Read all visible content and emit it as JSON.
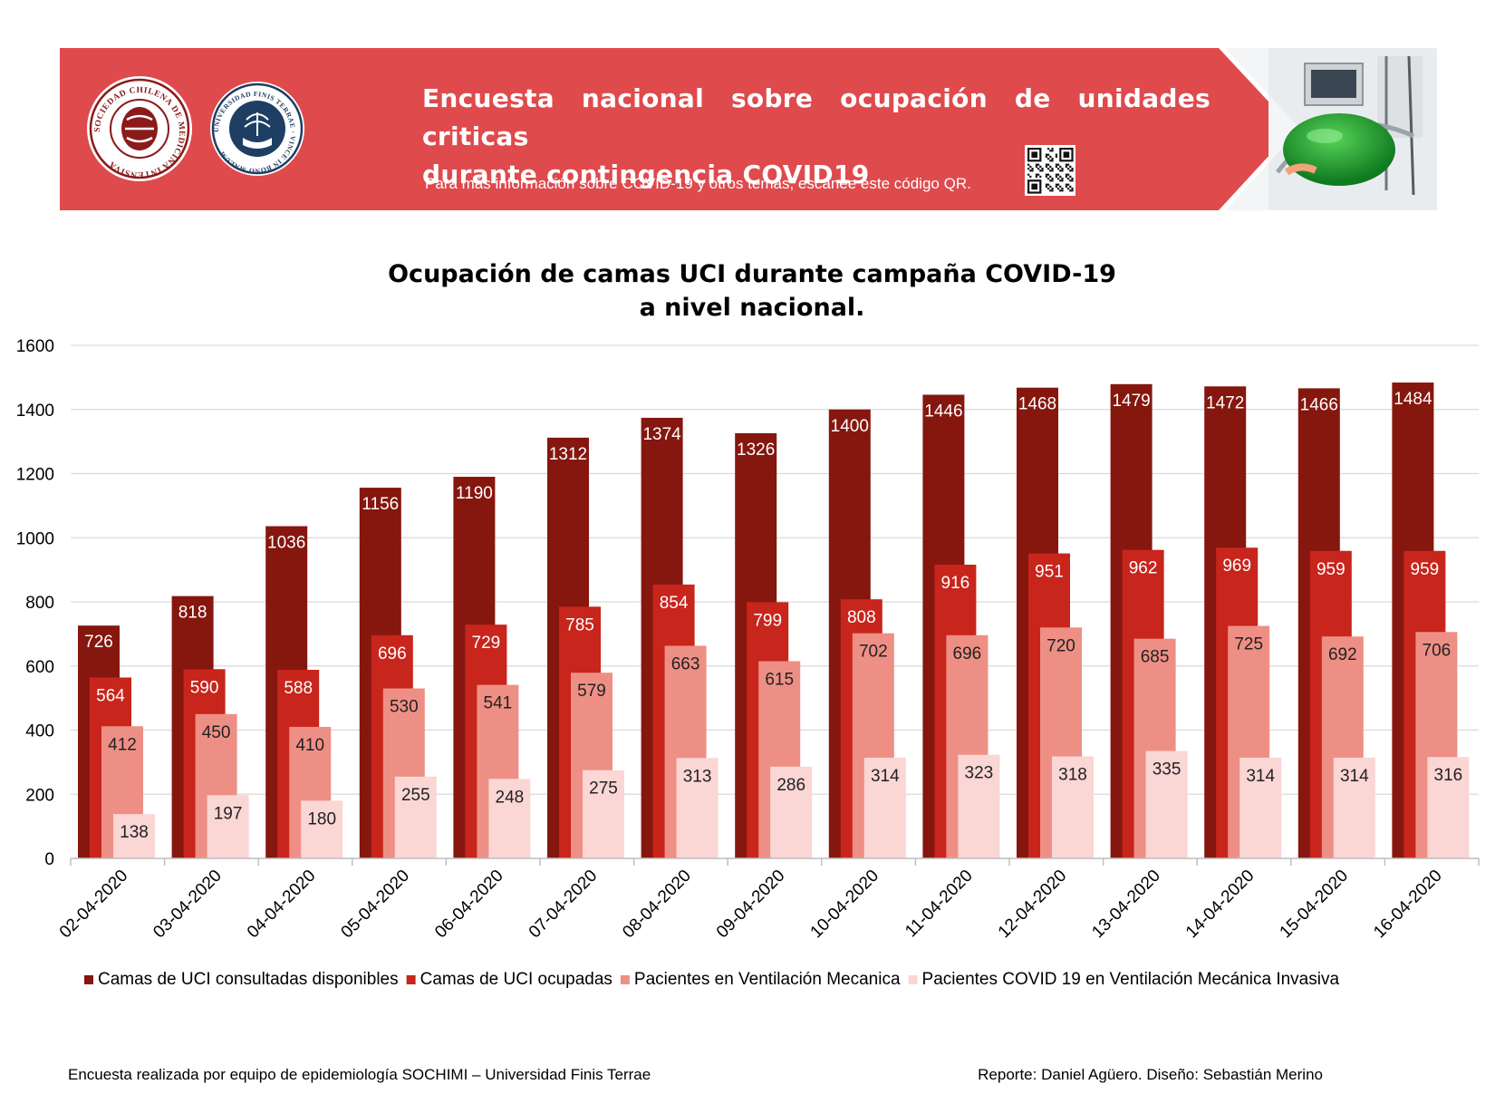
{
  "banner": {
    "title_line1": "Encuesta nacional sobre ocupación de unidades criticas",
    "title_line2": "durante contingencia COVID19",
    "subtitle": "Para más información sobre COVID-19 y otros temas, escanee este código QR.",
    "logo1_text": "SOCIEDAD CHILENA DE MEDICINA INTENSIVA",
    "logo2_text": "UNIVERSIDAD FINIS TERRAE · VINCE IN BONO MALUM",
    "icons": [
      "sochimi-logo",
      "finis-terrae-logo",
      "qr-code-icon",
      "icu-ventilator-photo"
    ],
    "colors": {
      "banner": "#df4a4d",
      "logo1": "#8b1a1a",
      "logo2": "#1f3e63"
    }
  },
  "chart_data": {
    "type": "bar",
    "title_line1": "Ocupación de camas UCI durante campaña COVID-19",
    "title_line2": "a nivel nacional.",
    "categories": [
      "02-04-2020",
      "03-04-2020",
      "04-04-2020",
      "05-04-2020",
      "06-04-2020",
      "07-04-2020",
      "08-04-2020",
      "09-04-2020",
      "10-04-2020",
      "11-04-2020",
      "12-04-2020",
      "13-04-2020",
      "14-04-2020",
      "15-04-2020",
      "16-04-2020"
    ],
    "series": [
      {
        "name": "Camas de UCI consultadas disponibles",
        "color": "#85170f",
        "values": [
          726,
          818,
          1036,
          1156,
          1190,
          1312,
          1374,
          1326,
          1400,
          1446,
          1468,
          1479,
          1472,
          1466,
          1484
        ]
      },
      {
        "name": "Camas de UCI ocupadas",
        "color": "#c8251c",
        "values": [
          564,
          590,
          588,
          696,
          729,
          785,
          854,
          799,
          808,
          916,
          951,
          962,
          969,
          959,
          959
        ]
      },
      {
        "name": "Pacientes en Ventilación Mecanica",
        "color": "#ee8f85",
        "values": [
          412,
          450,
          410,
          530,
          541,
          579,
          663,
          615,
          702,
          696,
          720,
          685,
          725,
          692,
          706
        ]
      },
      {
        "name": "Pacientes COVID 19 en Ventilación Mecánica Invasiva",
        "color": "#fad6d5",
        "values": [
          138,
          197,
          180,
          255,
          248,
          275,
          313,
          286,
          314,
          323,
          318,
          335,
          314,
          314,
          316
        ]
      }
    ],
    "yticks": [
      0,
      200,
      400,
      600,
      800,
      1000,
      1200,
      1400,
      1600
    ],
    "ylim": [
      0,
      1600
    ],
    "grid": true,
    "legend_position": "bottom"
  },
  "footer": {
    "left": "Encuesta realizada por equipo de epidemiología SOCHIMI – Universidad Finis Terrae",
    "right": "Reporte: Daniel Agüero. Diseño: Sebastián Merino"
  }
}
